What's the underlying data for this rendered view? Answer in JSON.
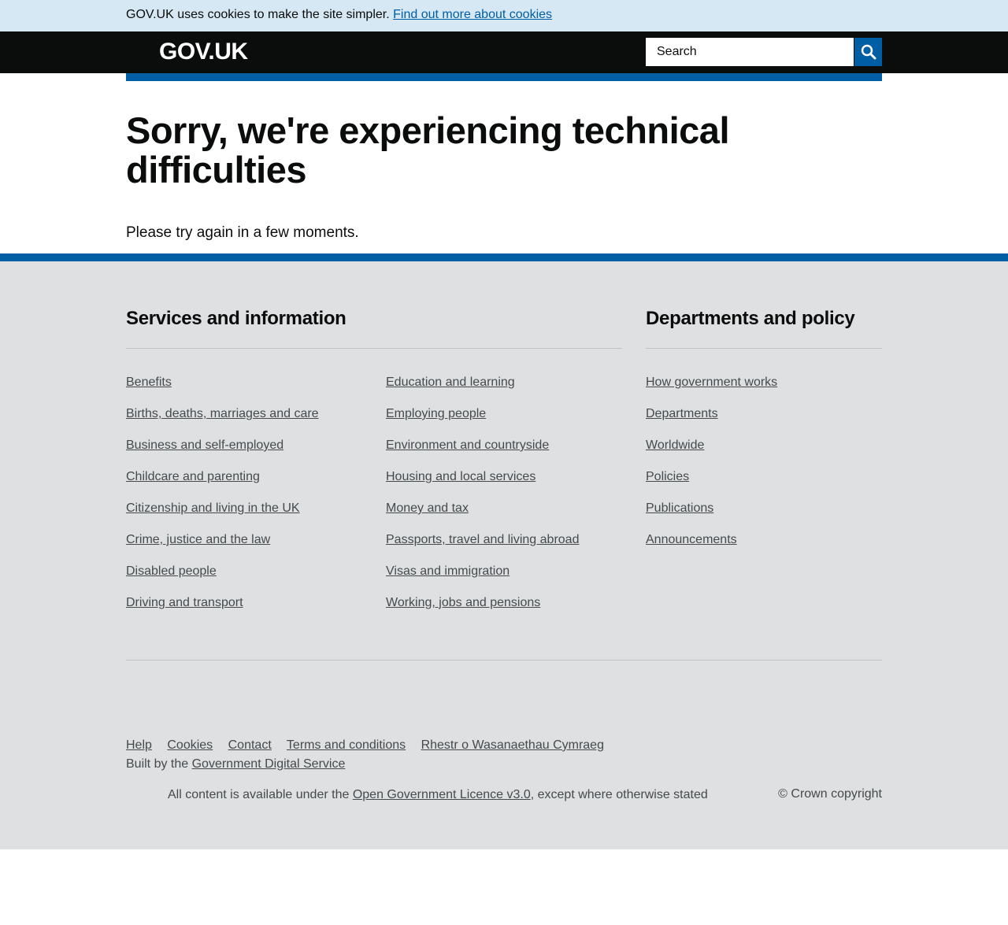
{
  "cookie_banner": {
    "text": "GOV.UK uses cookies to make the site simpler.",
    "link": "Find out more about cookies"
  },
  "header": {
    "logo": "GOV.UK",
    "search_placeholder": "Search",
    "search_icon": "magnifier-icon"
  },
  "main": {
    "title": "Sorry, we're experiencing technical difficulties",
    "message": "Please try again in a few moments."
  },
  "footer": {
    "services_heading": "Services and information",
    "departments_heading": "Departments and policy",
    "services_col1": [
      "Benefits",
      "Births, deaths, marriages and care",
      "Business and self-employed",
      "Childcare and parenting",
      "Citizenship and living in the UK",
      "Crime, justice and the law",
      "Disabled people",
      "Driving and transport"
    ],
    "services_col2": [
      "Education and learning",
      "Employing people",
      "Environment and countryside",
      "Housing and local services",
      "Money and tax",
      "Passports, travel and living abroad",
      "Visas and immigration",
      "Working, jobs and pensions"
    ],
    "departments": [
      "How government works",
      "Departments",
      "Worldwide",
      "Policies",
      "Publications",
      "Announcements"
    ],
    "meta_links": [
      "Help",
      "Cookies",
      "Contact",
      "Terms and conditions",
      "Rhestr o Wasanaethau Cymraeg"
    ],
    "built_by_prefix": "Built by the",
    "built_by_link": "Government Digital Service",
    "licence_prefix": "All content is available under the",
    "licence_link": "Open Government Licence v3.0",
    "licence_suffix": ", except where otherwise stated",
    "copyright": "© Crown copyright"
  },
  "colors": {
    "brand_blue": "#005ea5",
    "header_black": "#0b0c0c",
    "cookie_bg": "#d5e8f3",
    "footer_bg": "#dee0e2"
  }
}
